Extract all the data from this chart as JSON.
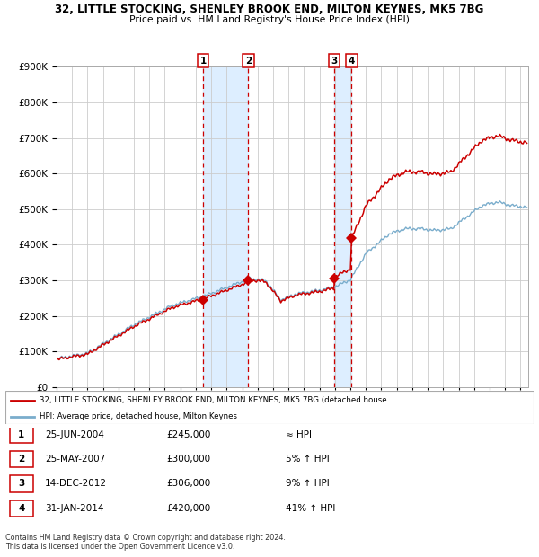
{
  "title_line1": "32, LITTLE STOCKING, SHENLEY BROOK END, MILTON KEYNES, MK5 7BG",
  "title_line2": "Price paid vs. HM Land Registry's House Price Index (HPI)",
  "legend_label_red": "32, LITTLE STOCKING, SHENLEY BROOK END, MILTON KEYNES, MK5 7BG (detached house",
  "legend_label_blue": "HPI: Average price, detached house, Milton Keynes",
  "footer": "Contains HM Land Registry data © Crown copyright and database right 2024.\nThis data is licensed under the Open Government Licence v3.0.",
  "transactions": [
    {
      "num": 1,
      "date": "25-JUN-2004",
      "price": 245000,
      "note": "≈ HPI",
      "decimal_date": 2004.48
    },
    {
      "num": 2,
      "date": "25-MAY-2007",
      "price": 300000,
      "note": "5% ↑ HPI",
      "decimal_date": 2007.4
    },
    {
      "num": 3,
      "date": "14-DEC-2012",
      "price": 306000,
      "note": "9% ↑ HPI",
      "decimal_date": 2012.95
    },
    {
      "num": 4,
      "date": "31-JAN-2014",
      "price": 420000,
      "note": "41% ↑ HPI",
      "decimal_date": 2014.08
    }
  ],
  "red_color": "#cc0000",
  "blue_color": "#7aadcc",
  "shade_color": "#ddeeff",
  "grid_color": "#cccccc",
  "bg_color": "#ffffff",
  "ylim": [
    0,
    900000
  ],
  "yticks": [
    0,
    100000,
    200000,
    300000,
    400000,
    500000,
    600000,
    700000,
    800000,
    900000
  ],
  "xlim_start": 1995.0,
  "xlim_end": 2025.5
}
